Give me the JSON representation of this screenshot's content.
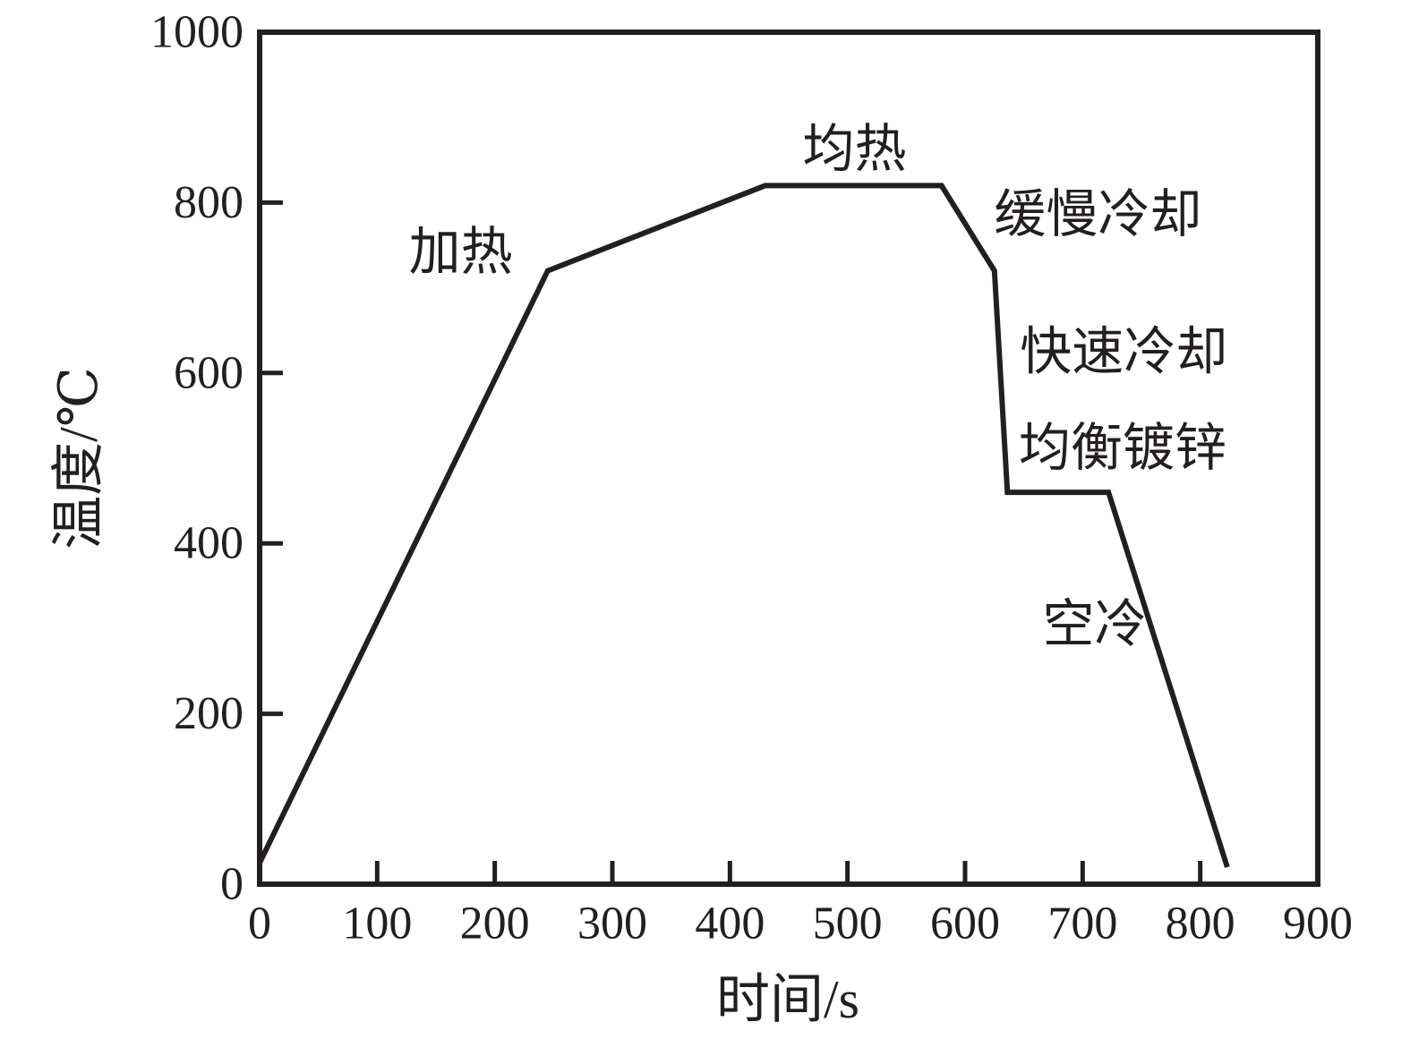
{
  "figure": {
    "background": "#ffffff",
    "line_color": "#231f20"
  },
  "chart_data": {
    "type": "line",
    "title": "",
    "xlabel": "时间/s",
    "ylabel": "温度/℃",
    "xlim": [
      0,
      900
    ],
    "ylim": [
      0,
      1000
    ],
    "x_ticks": [
      0,
      100,
      200,
      300,
      400,
      500,
      600,
      700,
      800,
      900
    ],
    "y_ticks": [
      0,
      200,
      400,
      600,
      800,
      1000
    ],
    "grid": false,
    "legend": false,
    "series": [
      {
        "name": "annealing-galvanizing-cycle",
        "points": [
          [
            0,
            25
          ],
          [
            245,
            720
          ],
          [
            430,
            820
          ],
          [
            580,
            820
          ],
          [
            625,
            720
          ],
          [
            636,
            460
          ],
          [
            722,
            460
          ],
          [
            823,
            20
          ]
        ]
      }
    ],
    "annotations": [
      {
        "name": "stage-label-heating",
        "text": "加热",
        "x": 171,
        "y": 742
      },
      {
        "name": "stage-label-soaking",
        "text": "均热",
        "x": 506,
        "y": 863
      },
      {
        "name": "stage-label-slow-cooling",
        "text": "缓慢冷却",
        "x": 713,
        "y": 786
      },
      {
        "name": "stage-label-rapid-cooling",
        "text": "快速冷却",
        "x": 735,
        "y": 625
      },
      {
        "name": "stage-label-galvanizing",
        "text": "均衡镀锌",
        "x": 734,
        "y": 512
      },
      {
        "name": "stage-label-air-cooling",
        "text": "空冷",
        "x": 710,
        "y": 305
      }
    ]
  }
}
